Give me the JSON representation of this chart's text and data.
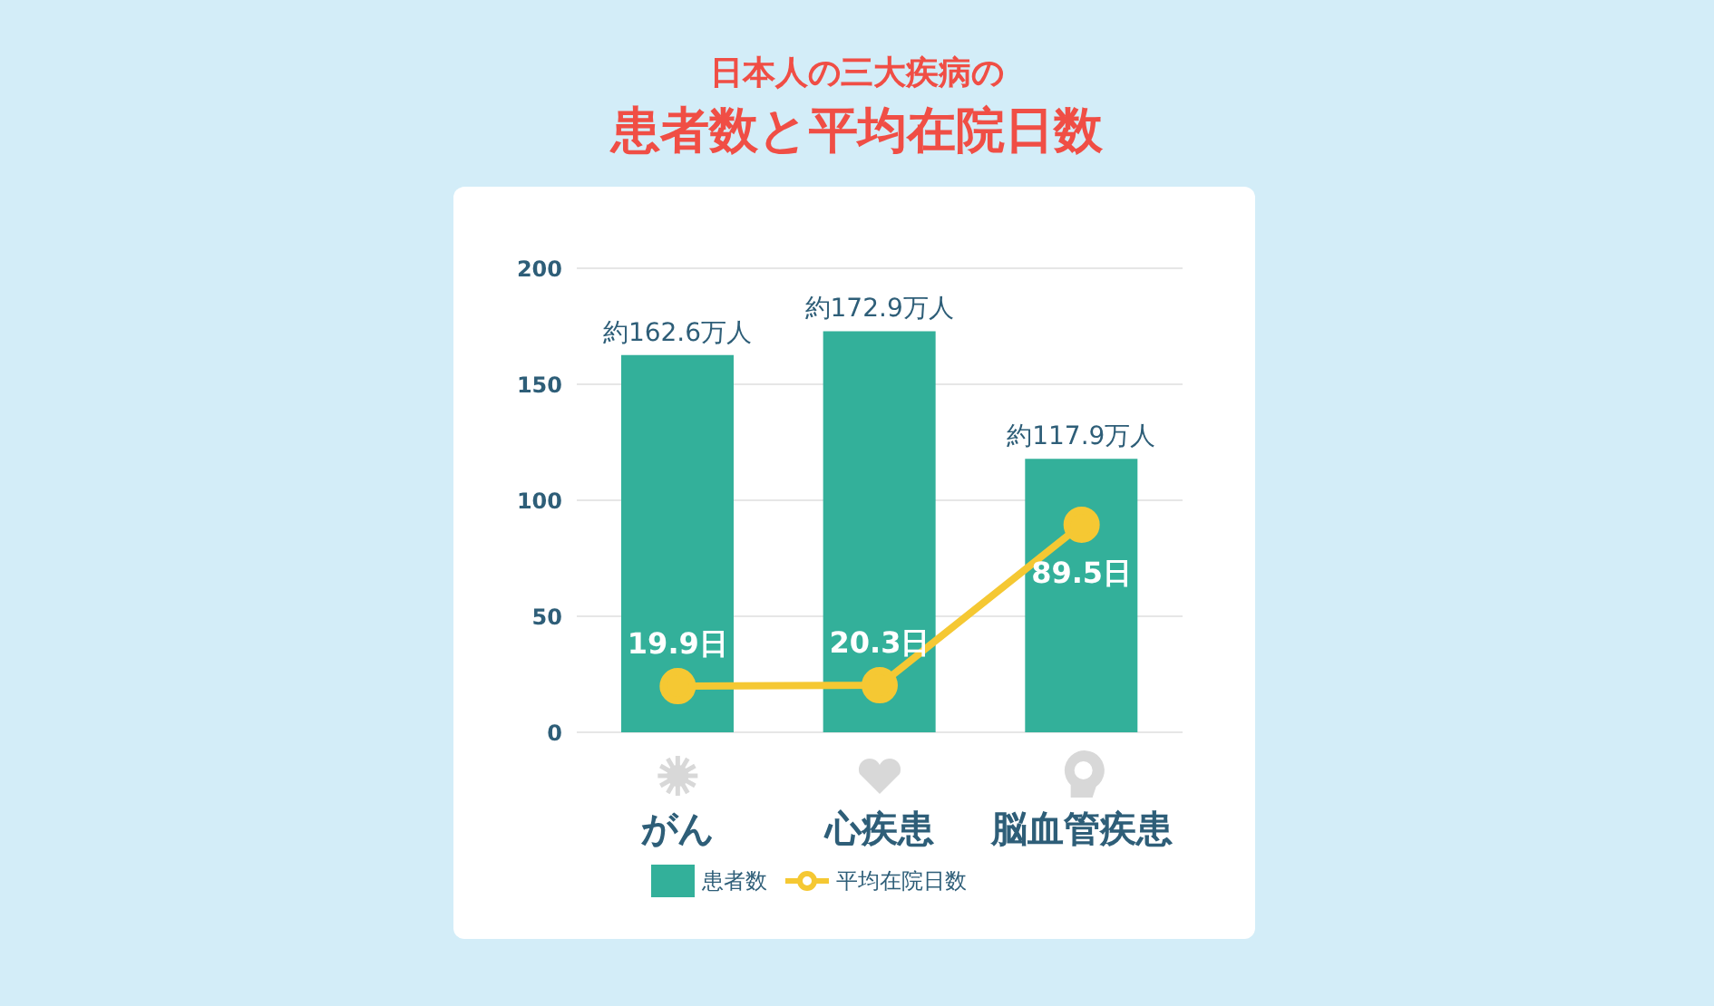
{
  "chart_data": {
    "type": "bar",
    "title": "日本人の三大疾病の",
    "subtitle": "患者数と平均在院日数",
    "categories": [
      "がん",
      "心疾患",
      "脳血管疾患"
    ],
    "series": [
      {
        "name": "患者数",
        "color": "#33b09a",
        "values": [
          162.6,
          172.9,
          117.9
        ],
        "value_labels": [
          "約162.6万人",
          "約172.9万人",
          "約117.9万人"
        ]
      },
      {
        "name": "平均在院日数",
        "type": "line",
        "color": "#f5c833",
        "values": [
          19.9,
          20.3,
          89.5
        ],
        "value_labels": [
          "19.9日",
          "20.3日",
          "89.5日"
        ]
      }
    ],
    "ylim": [
      0,
      200
    ],
    "yticks": [
      0,
      50,
      100,
      150,
      200
    ],
    "grid": "y",
    "legend": "bottom",
    "marker": "circle",
    "line_style": "solid"
  }
}
